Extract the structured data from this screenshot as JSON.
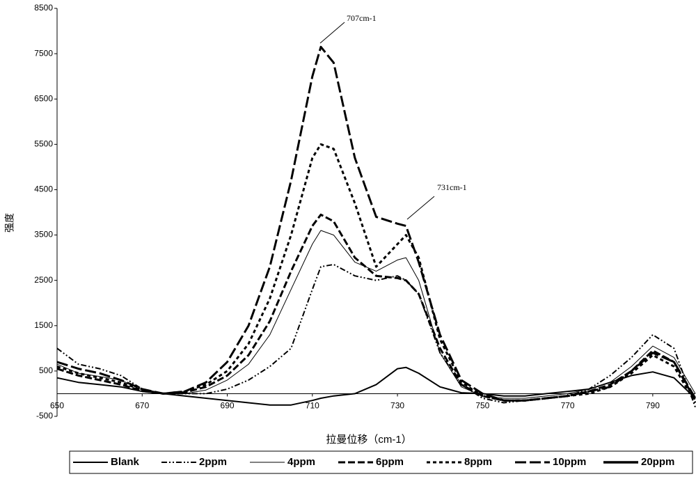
{
  "chart_data": {
    "type": "line",
    "x_label": "拉曼位移（cm-1）",
    "y_label": "强度",
    "annotations": [
      "707cm-1",
      "731cm-1"
    ],
    "x": [
      650,
      655,
      660,
      665,
      670,
      675,
      680,
      685,
      690,
      695,
      700,
      705,
      710,
      712,
      715,
      720,
      725,
      730,
      732,
      735,
      740,
      745,
      750,
      755,
      760,
      765,
      770,
      775,
      780,
      785,
      790,
      795,
      800
    ],
    "xlim": [
      650,
      800
    ],
    "xticks": [
      650,
      670,
      690,
      710,
      730,
      750,
      770,
      790
    ],
    "ylim": [
      -500,
      8500
    ],
    "yticks": [
      -500,
      500,
      1500,
      2500,
      3500,
      4500,
      5500,
      6500,
      7500,
      8500
    ],
    "grid": false,
    "legend": "bottom",
    "series": [
      {
        "name": "Blank",
        "color": "#000000",
        "values": [
          350,
          250,
          200,
          150,
          50,
          0,
          -50,
          -100,
          -150,
          -200,
          -250,
          -250,
          -150,
          -100,
          -50,
          0,
          200,
          550,
          580,
          450,
          150,
          20,
          0,
          -50,
          -50,
          0,
          50,
          100,
          250,
          400,
          480,
          350,
          -100
        ]
      },
      {
        "name": "2ppm",
        "color": "#000000",
        "values": [
          1000,
          650,
          550,
          400,
          100,
          0,
          0,
          0,
          100,
          300,
          600,
          1000,
          2300,
          2800,
          2850,
          2600,
          2500,
          2600,
          2500,
          2200,
          900,
          200,
          -100,
          -200,
          -150,
          -100,
          -50,
          100,
          400,
          800,
          1300,
          1000,
          -300
        ]
      },
      {
        "name": "4ppm",
        "color": "#000000",
        "values": [
          650,
          450,
          380,
          300,
          80,
          0,
          0,
          80,
          300,
          650,
          1300,
          2300,
          3300,
          3600,
          3500,
          2900,
          2700,
          2950,
          3000,
          2500,
          900,
          150,
          -50,
          -100,
          -100,
          -50,
          0,
          100,
          250,
          600,
          1050,
          800,
          0
        ]
      },
      {
        "name": "6ppm",
        "color": "#000000",
        "values": [
          550,
          400,
          300,
          200,
          60,
          0,
          30,
          150,
          400,
          850,
          1600,
          2700,
          3700,
          3950,
          3800,
          3000,
          2600,
          2550,
          2500,
          2200,
          1000,
          200,
          -50,
          -150,
          -150,
          -100,
          -50,
          50,
          200,
          500,
          950,
          700,
          -150
        ]
      },
      {
        "name": "8ppm",
        "color": "#000000",
        "values": [
          600,
          450,
          350,
          250,
          80,
          0,
          50,
          200,
          500,
          1100,
          2100,
          3500,
          5200,
          5500,
          5400,
          4200,
          2800,
          3300,
          3500,
          3000,
          1200,
          250,
          -50,
          -150,
          -150,
          -100,
          -50,
          0,
          150,
          450,
          850,
          600,
          -200
        ]
      },
      {
        "name": "10ppm",
        "color": "#000000",
        "values": [
          700,
          550,
          450,
          300,
          100,
          0,
          50,
          250,
          700,
          1500,
          2800,
          4700,
          7000,
          7650,
          7300,
          5200,
          3900,
          3750,
          3700,
          2900,
          1300,
          300,
          0,
          -150,
          -150,
          -100,
          -50,
          50,
          150,
          500,
          900,
          700,
          -100
        ]
      },
      {
        "name": "20ppm",
        "color": "#000000",
        "values": [
          null,
          null,
          null,
          null,
          null,
          null,
          null,
          null,
          null,
          null,
          null,
          null,
          null,
          null,
          null,
          null,
          null,
          null,
          null,
          null,
          null,
          null,
          null,
          null,
          null,
          null,
          null,
          null,
          null,
          null,
          null,
          null,
          null
        ]
      }
    ]
  }
}
